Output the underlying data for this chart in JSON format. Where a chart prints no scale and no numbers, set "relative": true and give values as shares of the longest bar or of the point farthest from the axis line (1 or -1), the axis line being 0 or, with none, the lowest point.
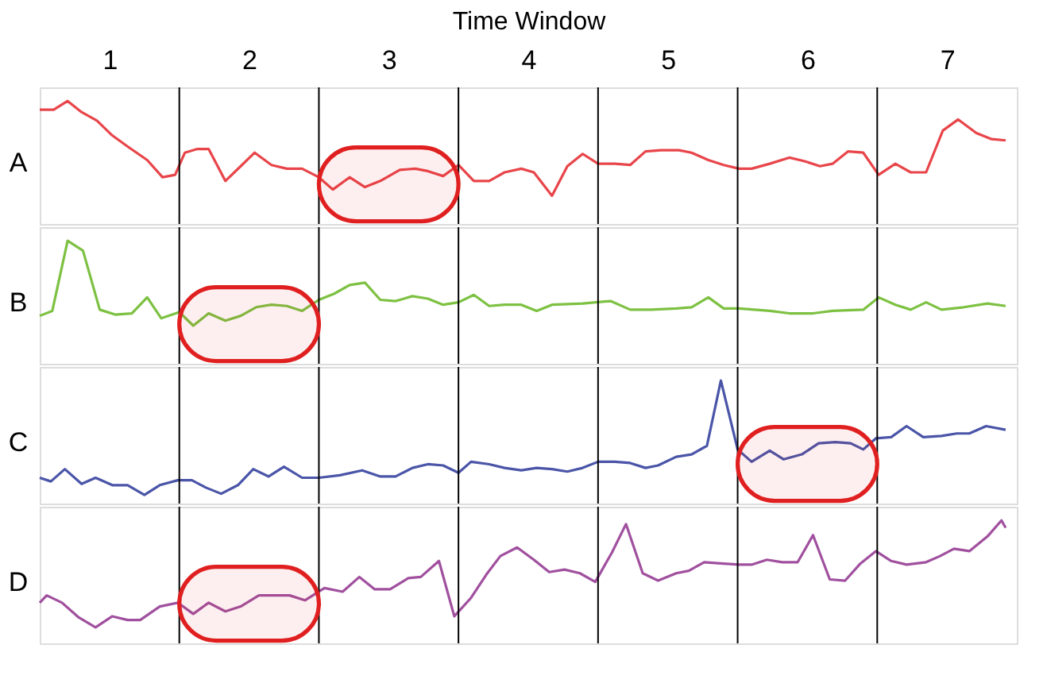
{
  "chart_data": [
    {
      "type": "line",
      "relative": true,
      "xlabel": "Time Window",
      "ylabel": "A",
      "xlim": [
        0,
        7
      ],
      "xticks": [
        {
          "value": 0.5,
          "label": "1"
        },
        {
          "value": 1.5,
          "label": "2"
        },
        {
          "value": 2.5,
          "label": "3"
        },
        {
          "value": 3.5,
          "label": "4"
        },
        {
          "value": 4.5,
          "label": "5"
        },
        {
          "value": 5.5,
          "label": "6"
        },
        {
          "value": 6.5,
          "label": "7"
        }
      ],
      "ref_lines": [
        {
          "axis": "x",
          "value": 1
        },
        {
          "axis": "x",
          "value": 2
        },
        {
          "axis": "x",
          "value": 3
        },
        {
          "axis": "x",
          "value": 4
        },
        {
          "axis": "x",
          "value": 5
        },
        {
          "axis": "x",
          "value": 6
        }
      ],
      "bands": [
        {
          "axis": "x",
          "from": 2,
          "to": 3,
          "color": "#e02020"
        }
      ],
      "series": [
        {
          "color": "#e8454a",
          "x": [
            0.0,
            0.1,
            0.2,
            0.3,
            0.41,
            0.52,
            0.63,
            0.77,
            0.88,
            0.97,
            1.04,
            1.13,
            1.21,
            1.33,
            1.44,
            1.54,
            1.66,
            1.77,
            1.88,
            2.0,
            2.1,
            2.22,
            2.33,
            2.44,
            2.58,
            2.69,
            2.78,
            2.89,
            3.0,
            3.11,
            3.22,
            3.33,
            3.45,
            3.54,
            3.67,
            3.78,
            3.89,
            4.0,
            4.12,
            4.23,
            4.34,
            4.45,
            4.58,
            4.67,
            4.79,
            4.9,
            5.01,
            5.1,
            5.23,
            5.37,
            5.48,
            5.59,
            5.68,
            5.79,
            5.9,
            6.01,
            6.13,
            6.24,
            6.35,
            6.47,
            6.58,
            6.71,
            6.82,
            6.92
          ],
          "values": [
            0.93,
            0.93,
            1.0,
            0.91,
            0.84,
            0.72,
            0.63,
            0.52,
            0.38,
            0.4,
            0.58,
            0.61,
            0.61,
            0.35,
            0.47,
            0.58,
            0.48,
            0.45,
            0.45,
            0.38,
            0.28,
            0.38,
            0.3,
            0.35,
            0.44,
            0.45,
            0.43,
            0.39,
            0.48,
            0.35,
            0.35,
            0.42,
            0.45,
            0.42,
            0.23,
            0.47,
            0.57,
            0.49,
            0.49,
            0.48,
            0.59,
            0.6,
            0.6,
            0.58,
            0.52,
            0.48,
            0.45,
            0.45,
            0.49,
            0.54,
            0.51,
            0.47,
            0.49,
            0.59,
            0.58,
            0.4,
            0.49,
            0.42,
            0.42,
            0.76,
            0.85,
            0.74,
            0.69,
            0.68
          ]
        }
      ],
      "tick_labels": "x"
    },
    {
      "type": "line",
      "relative": true,
      "ylabel": "B",
      "xlim": [
        0,
        7
      ],
      "ref_lines": [
        {
          "axis": "x",
          "value": 1
        },
        {
          "axis": "x",
          "value": 2
        },
        {
          "axis": "x",
          "value": 3
        },
        {
          "axis": "x",
          "value": 4
        },
        {
          "axis": "x",
          "value": 5
        },
        {
          "axis": "x",
          "value": 6
        }
      ],
      "bands": [
        {
          "axis": "x",
          "from": 1,
          "to": 2,
          "color": "#e02020"
        }
      ],
      "series": [
        {
          "color": "#7dc142",
          "x": [
            0.0,
            0.09,
            0.2,
            0.31,
            0.43,
            0.54,
            0.66,
            0.77,
            0.87,
            1.0,
            1.1,
            1.21,
            1.33,
            1.44,
            1.55,
            1.66,
            1.77,
            1.88,
            2.0,
            2.11,
            2.22,
            2.33,
            2.44,
            2.55,
            2.67,
            2.78,
            2.89,
            3.0,
            3.11,
            3.22,
            3.33,
            3.45,
            3.56,
            3.67,
            3.89,
            4.09,
            4.23,
            4.38,
            4.56,
            4.67,
            4.79,
            4.9,
            5.01,
            5.23,
            5.37,
            5.54,
            5.68,
            5.9,
            6.01,
            6.13,
            6.24,
            6.35,
            6.46,
            6.62,
            6.79,
            6.92
          ],
          "values": [
            0.39,
            0.43,
            1.0,
            0.92,
            0.44,
            0.4,
            0.41,
            0.54,
            0.37,
            0.42,
            0.31,
            0.41,
            0.35,
            0.39,
            0.46,
            0.48,
            0.47,
            0.43,
            0.52,
            0.57,
            0.64,
            0.66,
            0.52,
            0.51,
            0.55,
            0.53,
            0.48,
            0.5,
            0.56,
            0.47,
            0.48,
            0.48,
            0.43,
            0.48,
            0.49,
            0.51,
            0.44,
            0.44,
            0.45,
            0.46,
            0.54,
            0.45,
            0.45,
            0.43,
            0.41,
            0.41,
            0.43,
            0.44,
            0.54,
            0.48,
            0.44,
            0.5,
            0.44,
            0.46,
            0.49,
            0.47
          ]
        }
      ],
      "tick_labels": false
    },
    {
      "type": "line",
      "relative": true,
      "ylabel": "C",
      "xlim": [
        0,
        7
      ],
      "ref_lines": [
        {
          "axis": "x",
          "value": 1
        },
        {
          "axis": "x",
          "value": 2
        },
        {
          "axis": "x",
          "value": 3
        },
        {
          "axis": "x",
          "value": 4
        },
        {
          "axis": "x",
          "value": 5
        },
        {
          "axis": "x",
          "value": 6
        }
      ],
      "bands": [
        {
          "axis": "x",
          "from": 5,
          "to": 6,
          "color": "#e02020"
        }
      ],
      "series": [
        {
          "color": "#4a55a8",
          "x": [
            0.0,
            0.08,
            0.18,
            0.3,
            0.4,
            0.52,
            0.63,
            0.75,
            0.86,
            0.99,
            1.09,
            1.19,
            1.3,
            1.42,
            1.53,
            1.64,
            1.75,
            1.88,
            2.0,
            2.15,
            2.31,
            2.44,
            2.55,
            2.67,
            2.78,
            2.89,
            3.0,
            3.09,
            3.22,
            3.33,
            3.45,
            3.56,
            3.67,
            3.78,
            3.89,
            4.0,
            4.12,
            4.23,
            4.34,
            4.43,
            4.56,
            4.67,
            4.78,
            4.88,
            5.0,
            5.1,
            5.23,
            5.33,
            5.46,
            5.58,
            5.7,
            5.81,
            5.9,
            5.99,
            6.1,
            6.21,
            6.33,
            6.46,
            6.57,
            6.66,
            6.78,
            6.92
          ],
          "values": [
            0.21,
            0.18,
            0.28,
            0.16,
            0.21,
            0.15,
            0.15,
            0.07,
            0.15,
            0.19,
            0.19,
            0.13,
            0.08,
            0.15,
            0.28,
            0.22,
            0.3,
            0.21,
            0.21,
            0.23,
            0.27,
            0.22,
            0.22,
            0.29,
            0.32,
            0.31,
            0.25,
            0.34,
            0.32,
            0.29,
            0.27,
            0.29,
            0.28,
            0.26,
            0.29,
            0.34,
            0.34,
            0.33,
            0.29,
            0.31,
            0.38,
            0.4,
            0.47,
            1.0,
            0.44,
            0.34,
            0.43,
            0.36,
            0.4,
            0.49,
            0.5,
            0.49,
            0.44,
            0.53,
            0.54,
            0.63,
            0.54,
            0.55,
            0.57,
            0.57,
            0.63,
            0.6
          ]
        }
      ],
      "tick_labels": false
    },
    {
      "type": "line",
      "relative": true,
      "ylabel": "D",
      "xlim": [
        0,
        7
      ],
      "ref_lines": [
        {
          "axis": "x",
          "value": 1
        },
        {
          "axis": "x",
          "value": 2
        },
        {
          "axis": "x",
          "value": 3
        },
        {
          "axis": "x",
          "value": 4
        },
        {
          "axis": "x",
          "value": 5
        },
        {
          "axis": "x",
          "value": 6
        }
      ],
      "bands": [
        {
          "axis": "x",
          "from": 1,
          "to": 2,
          "color": "#e02020"
        }
      ],
      "series": [
        {
          "color": "#a0509e",
          "x": [
            0.0,
            0.05,
            0.16,
            0.28,
            0.4,
            0.52,
            0.63,
            0.72,
            0.86,
            0.99,
            1.1,
            1.21,
            1.33,
            1.44,
            1.57,
            1.68,
            1.79,
            1.9,
            2.04,
            2.17,
            2.29,
            2.4,
            2.51,
            2.64,
            2.73,
            2.86,
            2.97,
            3.09,
            3.2,
            3.3,
            3.42,
            3.54,
            3.65,
            3.76,
            3.87,
            3.98,
            4.1,
            4.2,
            4.32,
            4.43,
            4.56,
            4.65,
            4.76,
            4.88,
            5.01,
            5.1,
            5.21,
            5.32,
            5.43,
            5.54,
            5.66,
            5.77,
            5.88,
            5.99,
            6.1,
            6.21,
            6.35,
            6.45,
            6.55,
            6.66,
            6.79,
            6.89,
            6.92
          ],
          "values": [
            0.33,
            0.39,
            0.33,
            0.21,
            0.13,
            0.22,
            0.19,
            0.19,
            0.3,
            0.33,
            0.24,
            0.33,
            0.26,
            0.3,
            0.39,
            0.39,
            0.39,
            0.35,
            0.45,
            0.42,
            0.54,
            0.44,
            0.44,
            0.53,
            0.54,
            0.67,
            0.22,
            0.37,
            0.56,
            0.71,
            0.78,
            0.68,
            0.58,
            0.6,
            0.57,
            0.5,
            0.74,
            0.97,
            0.57,
            0.51,
            0.57,
            0.59,
            0.66,
            0.65,
            0.64,
            0.64,
            0.68,
            0.66,
            0.66,
            0.88,
            0.52,
            0.51,
            0.65,
            0.75,
            0.67,
            0.64,
            0.66,
            0.71,
            0.77,
            0.75,
            0.87,
            1.0,
            0.94
          ]
        }
      ],
      "tick_labels": false
    }
  ]
}
